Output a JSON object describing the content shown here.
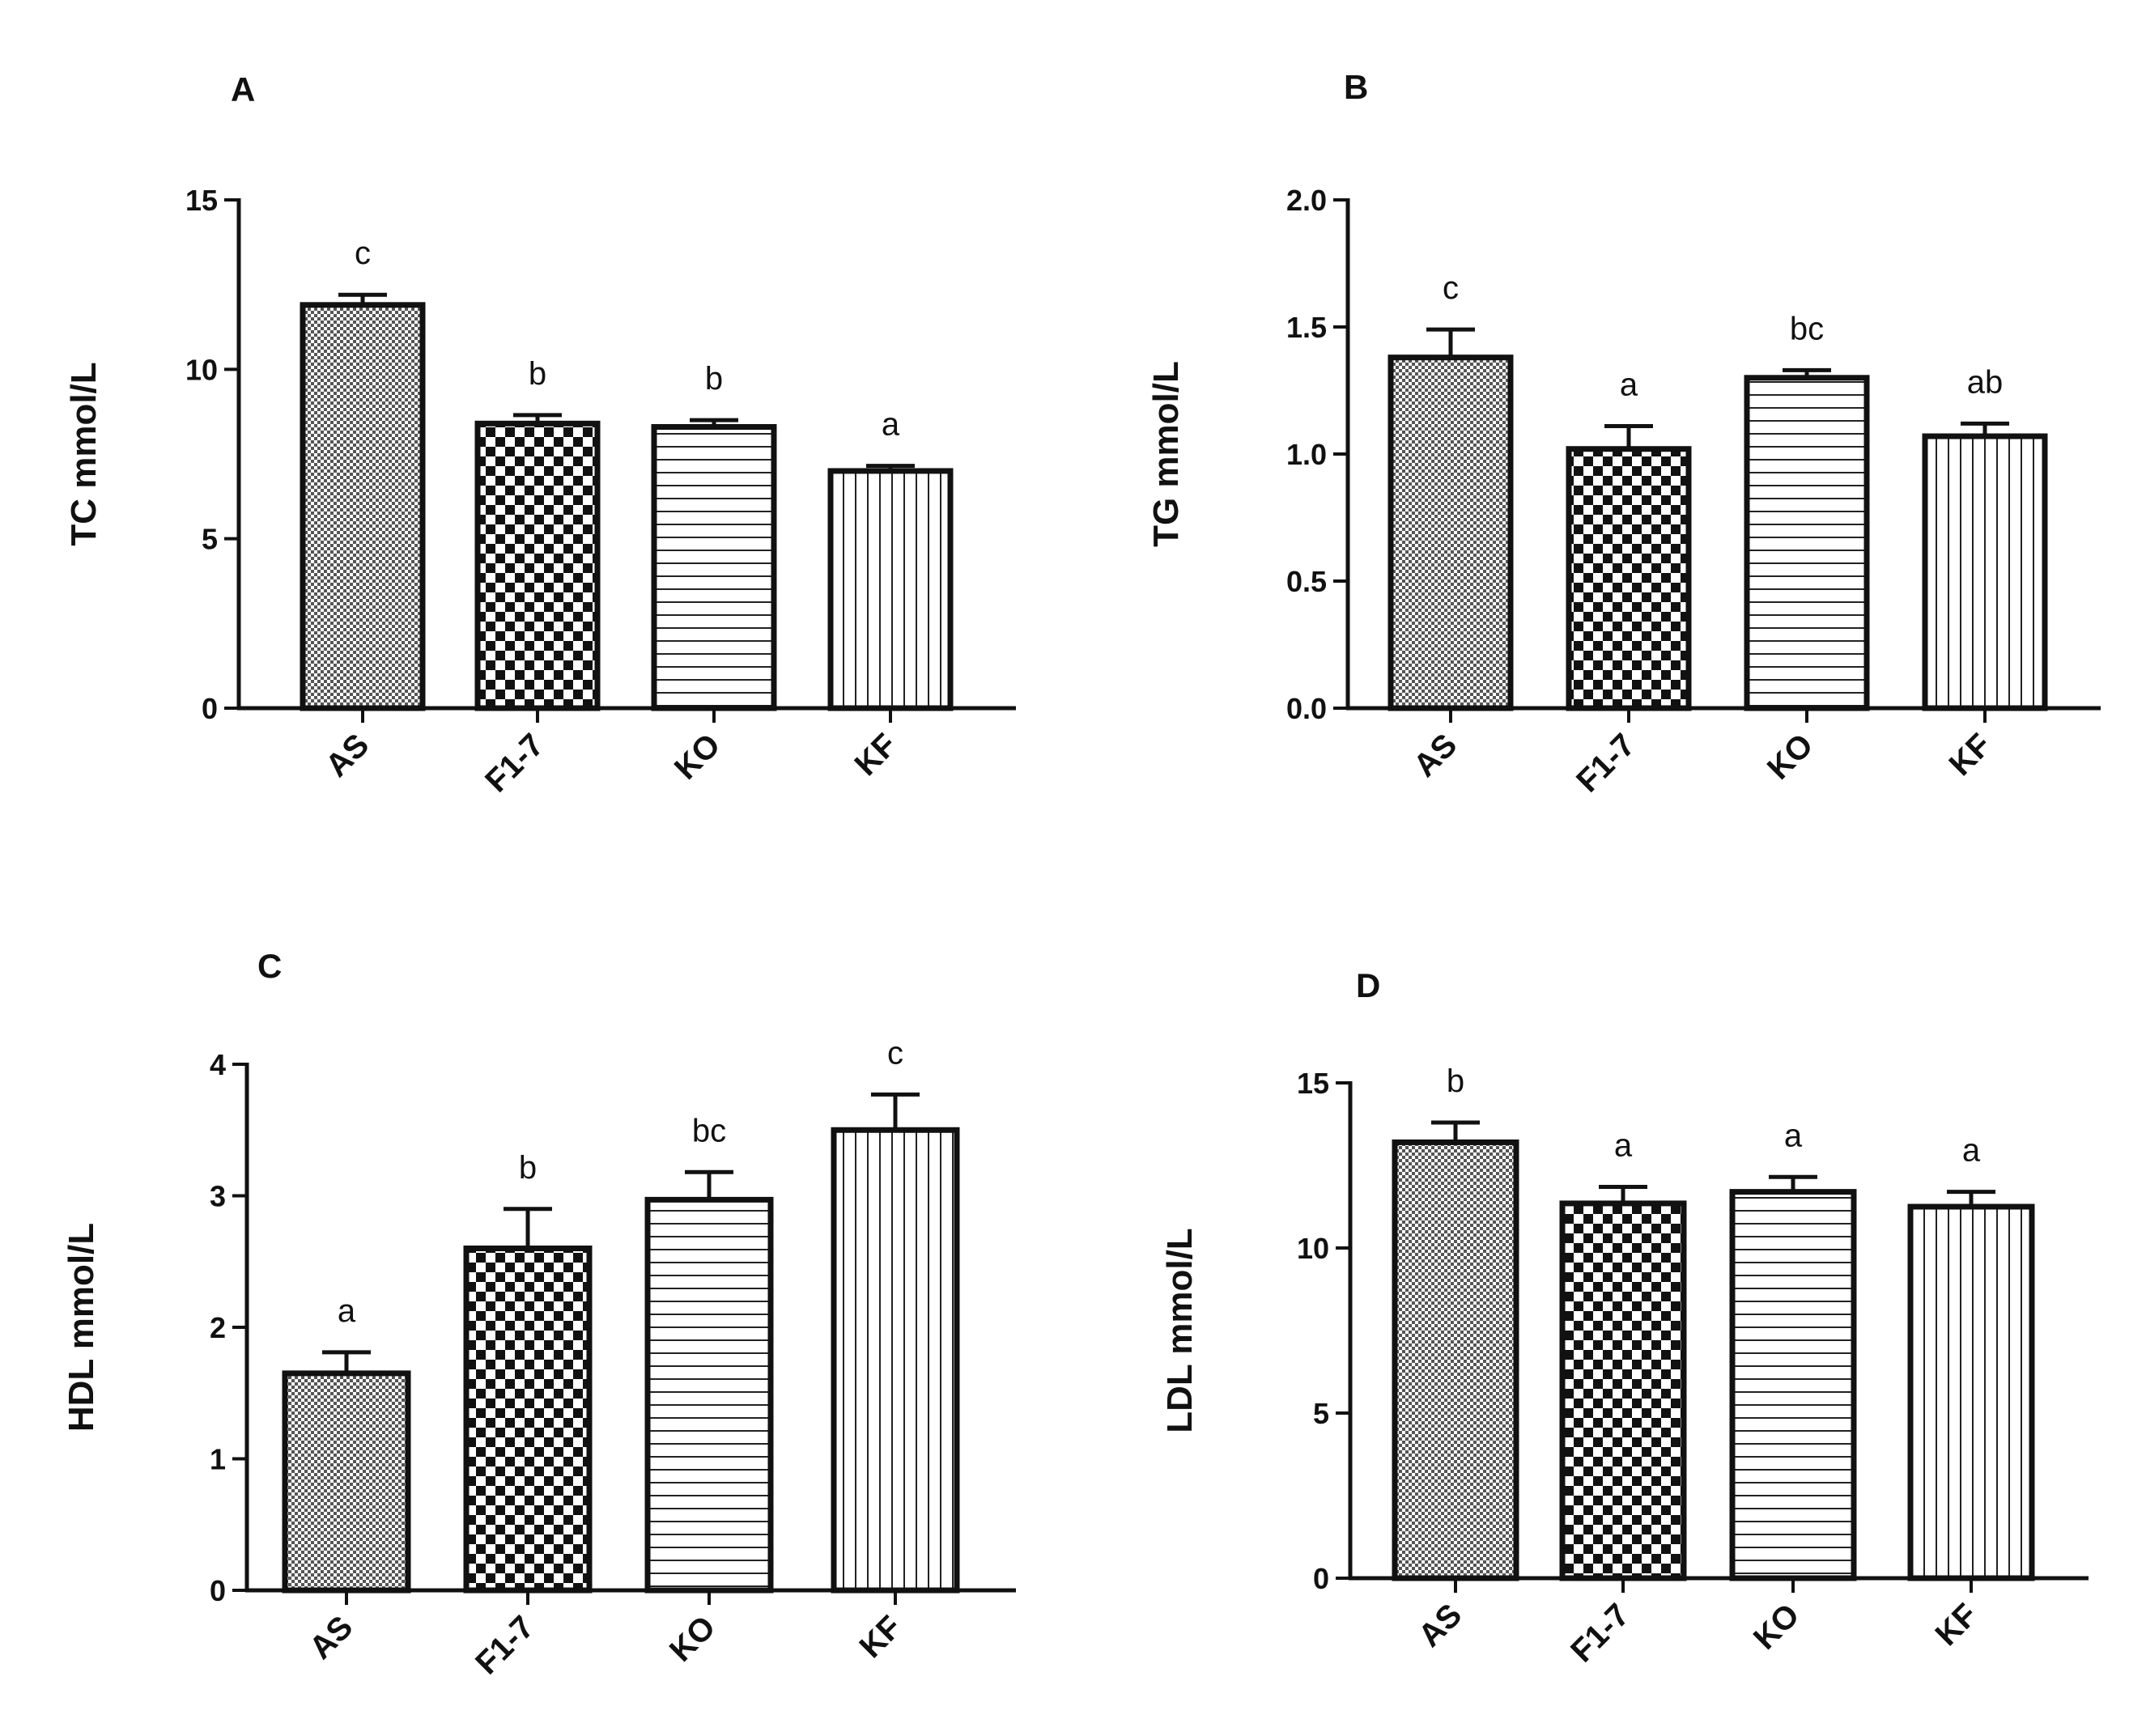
{
  "figure": {
    "description_hidden": false
  },
  "chart_data": [
    {
      "type": "bar",
      "panel": "A",
      "ylabel": "TC mmol/L",
      "xlabel": "",
      "ylim": [
        0,
        15
      ],
      "yticks": [
        0,
        5,
        10,
        15
      ],
      "ytick_labels": [
        "0",
        "5",
        "10",
        "15"
      ],
      "categories": [
        "AS",
        "F1-7",
        "KO",
        "KF"
      ],
      "values": [
        11.9,
        8.4,
        8.3,
        7.0
      ],
      "errors": [
        0.3,
        0.25,
        0.2,
        0.15
      ],
      "significance": [
        "c",
        "b",
        "b",
        "a"
      ],
      "patterns": [
        "fine-check",
        "checker",
        "horizontal",
        "vertical"
      ]
    },
    {
      "type": "bar",
      "panel": "B",
      "ylabel": "TG mmol/L",
      "xlabel": "",
      "ylim": [
        0,
        2.0
      ],
      "yticks": [
        0,
        0.5,
        1.0,
        1.5,
        2.0
      ],
      "ytick_labels": [
        "0.0",
        "0.5",
        "1.0",
        "1.5",
        "2.0"
      ],
      "categories": [
        "AS",
        "F1-7",
        "KO",
        "KF"
      ],
      "values": [
        1.38,
        1.02,
        1.3,
        1.07
      ],
      "errors": [
        0.11,
        0.09,
        0.03,
        0.05
      ],
      "significance": [
        "c",
        "a",
        "bc",
        "ab"
      ],
      "patterns": [
        "fine-check",
        "checker",
        "horizontal",
        "vertical"
      ]
    },
    {
      "type": "bar",
      "panel": "C",
      "ylabel": "HDL mmol/L",
      "xlabel": "",
      "ylim": [
        0,
        4
      ],
      "yticks": [
        0,
        1,
        2,
        3,
        4
      ],
      "ytick_labels": [
        "0",
        "1",
        "2",
        "3",
        "4"
      ],
      "categories": [
        "AS",
        "F1-7",
        "KO",
        "KF"
      ],
      "values": [
        1.65,
        2.6,
        2.97,
        3.5
      ],
      "errors": [
        0.16,
        0.3,
        0.21,
        0.27
      ],
      "significance": [
        "a",
        "b",
        "bc",
        "c"
      ],
      "patterns": [
        "fine-check",
        "checker",
        "horizontal",
        "vertical"
      ]
    },
    {
      "type": "bar",
      "panel": "D",
      "ylabel": "LDL mmol/L",
      "xlabel": "",
      "ylim": [
        0,
        15
      ],
      "yticks": [
        0,
        5,
        10,
        15
      ],
      "ytick_labels": [
        "0",
        "5",
        "10",
        "15"
      ],
      "categories": [
        "AS",
        "F1-7",
        "KO",
        "KF"
      ],
      "values": [
        13.2,
        11.35,
        11.7,
        11.25
      ],
      "errors": [
        0.6,
        0.5,
        0.45,
        0.45
      ],
      "significance": [
        "b",
        "a",
        "a",
        "a"
      ],
      "patterns": [
        "fine-check",
        "checker",
        "horizontal",
        "vertical"
      ]
    }
  ]
}
